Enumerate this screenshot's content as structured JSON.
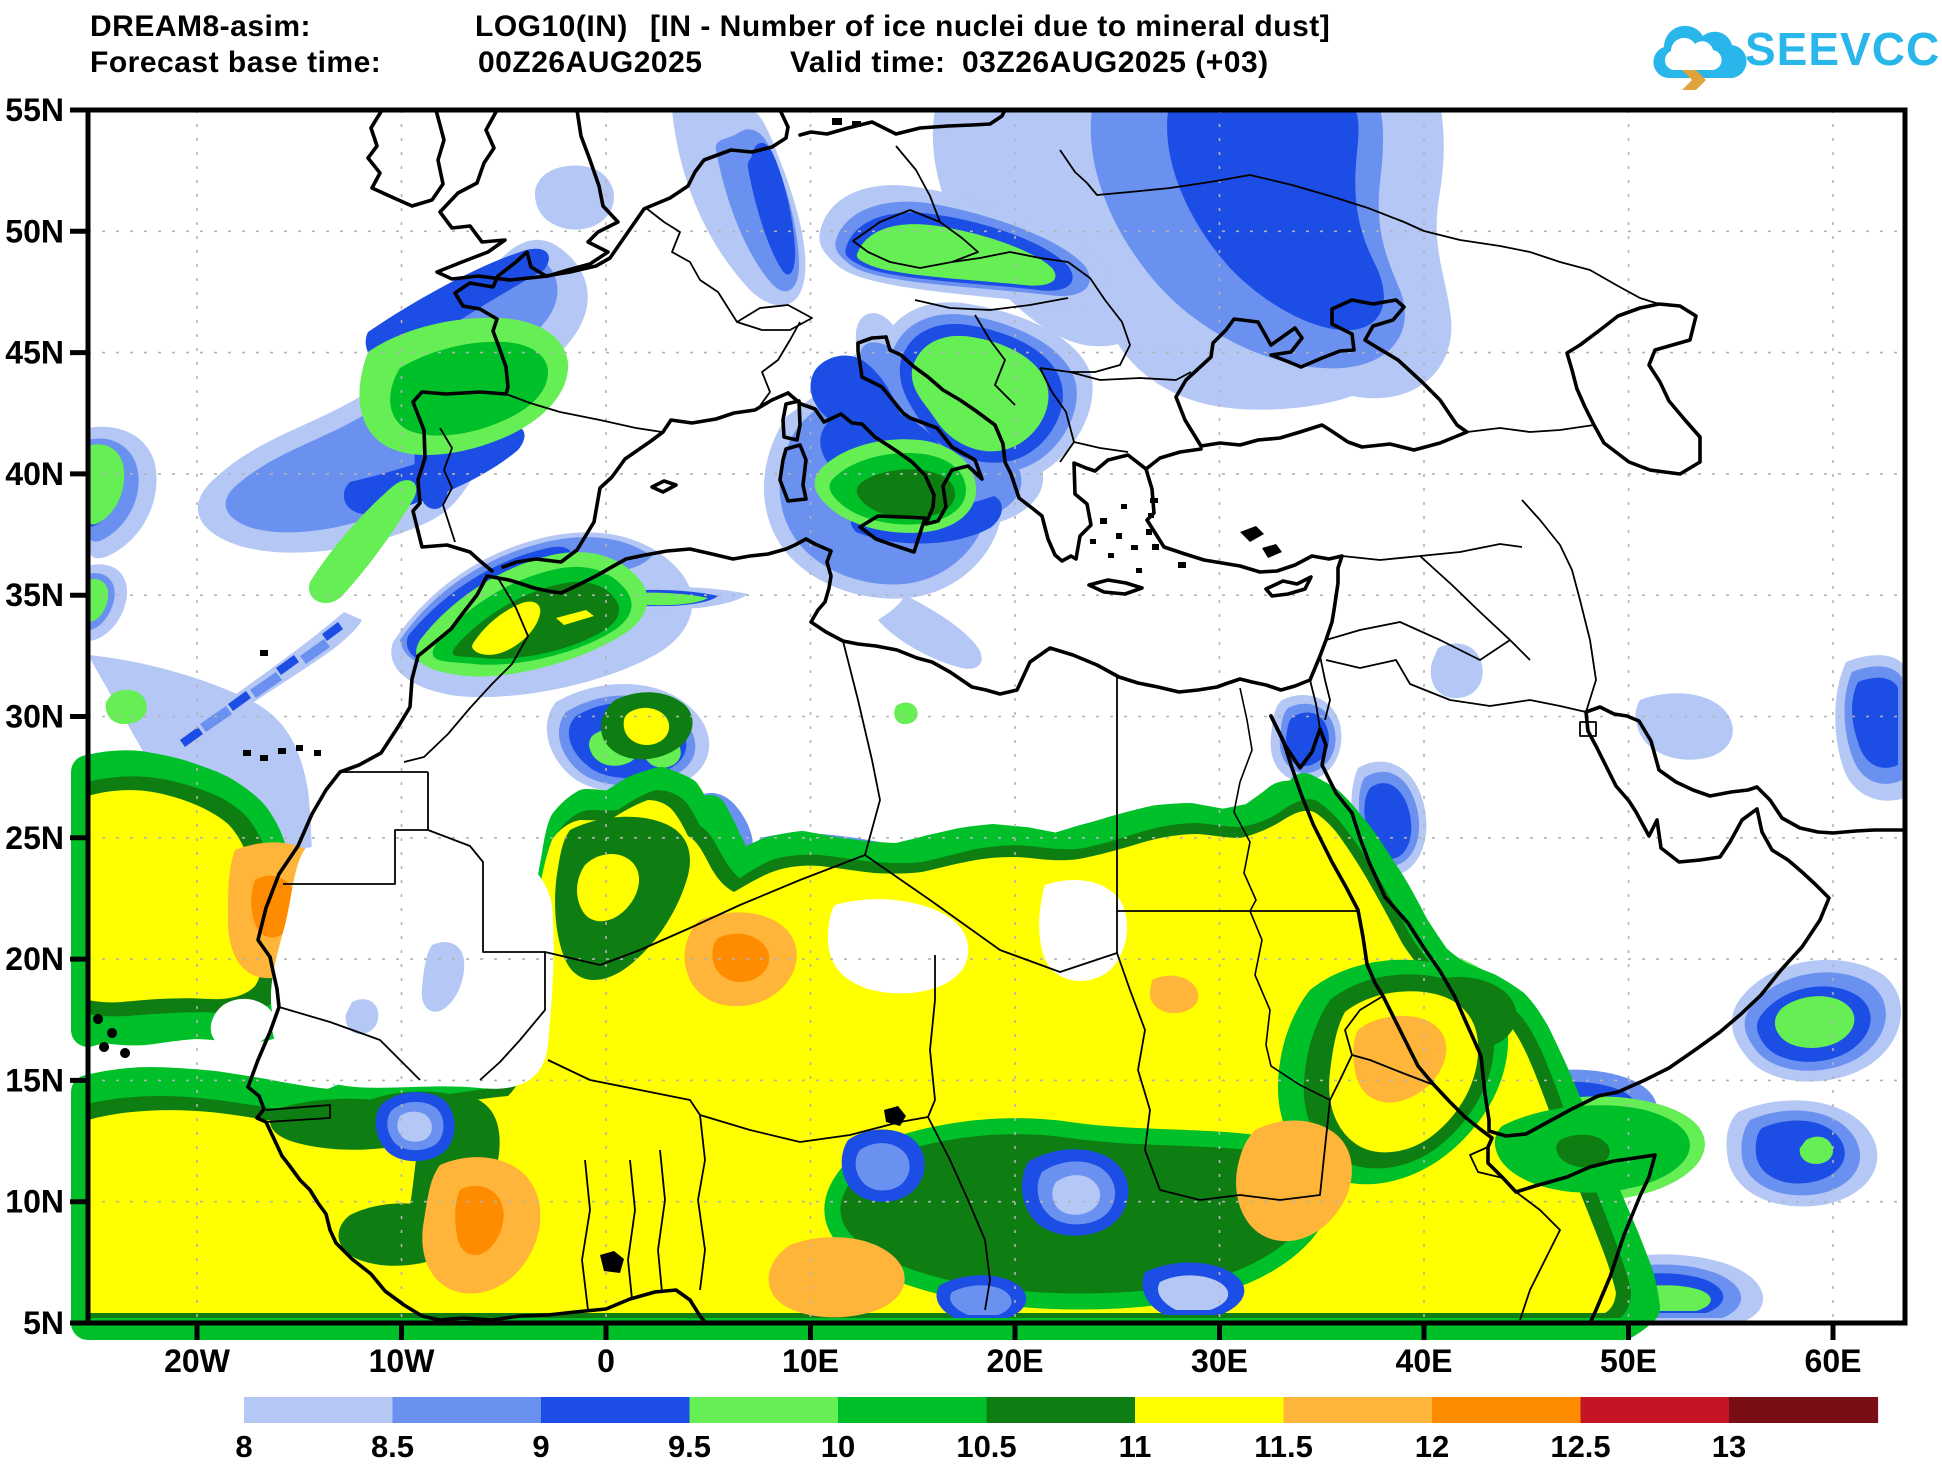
{
  "header": {
    "model": "DREAM8-asim:",
    "variable": "LOG10(IN)",
    "description": "[IN - Number of ice nuclei due to mineral dust]",
    "forecast_label": "Forecast base time:",
    "forecast_value": "00Z26AUG2025",
    "valid_label": "Valid time:",
    "valid_value": "03Z26AUG2025 (+03)"
  },
  "logo": {
    "text": "SEEVCCC",
    "cloud_color": "#29b6ea",
    "arrow_color": "#e0a23c"
  },
  "axes": {
    "lat_ticks": [
      "55N",
      "50N",
      "45N",
      "40N",
      "35N",
      "30N",
      "25N",
      "20N",
      "15N",
      "10N",
      "5N"
    ],
    "lon_ticks": [
      "20W",
      "10W",
      "0",
      "10E",
      "20E",
      "30E",
      "40E",
      "50E",
      "60E"
    ]
  },
  "colorbar": {
    "labels": [
      "8",
      "8.5",
      "9",
      "9.5",
      "10",
      "10.5",
      "11",
      "11.5",
      "12",
      "12.5",
      "13"
    ],
    "colors": [
      "#b4c7f5",
      "#6a90f0",
      "#1c4de5",
      "#66ee55",
      "#00c02a",
      "#0e7e12",
      "#ffff00",
      "#ffb43a",
      "#ff8c00",
      "#c41425",
      "#7a0e16"
    ]
  },
  "field_palette": {
    "light_blue": "#b4c7f5",
    "medium_blue": "#6a90f0",
    "blue": "#1c4de5",
    "light_green": "#66ee55",
    "green": "#00c02a",
    "dark_green": "#0e7e12",
    "yellow": "#ffff00",
    "light_orange": "#ffb43a",
    "orange": "#ff8c00",
    "red": "#c41425",
    "dark_red": "#7a0e16"
  }
}
